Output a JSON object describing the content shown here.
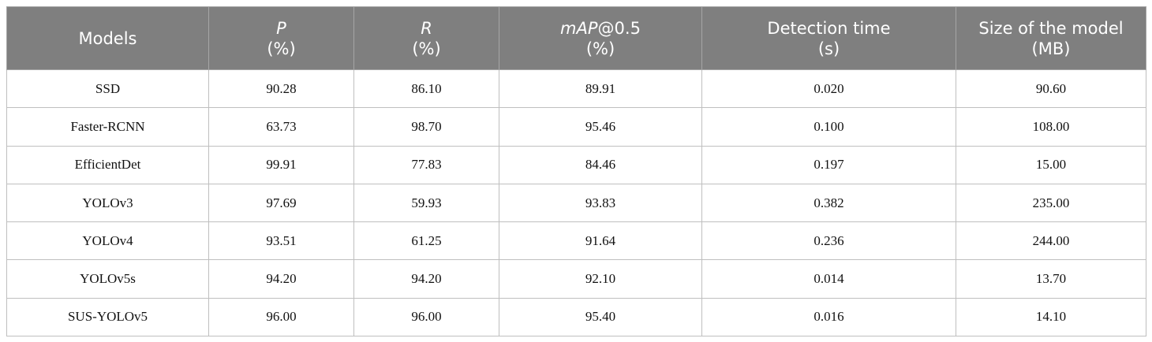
{
  "table": {
    "header": [
      {
        "name": [
          {
            "text": "Models"
          }
        ]
      },
      {
        "name": [
          {
            "text": "P",
            "italic": true
          }
        ],
        "unit": "(%)"
      },
      {
        "name": [
          {
            "text": "R",
            "italic": true
          }
        ],
        "unit": "(%)"
      },
      {
        "name": [
          {
            "text": "mAP",
            "italic": true
          },
          {
            "text": "@0.5"
          }
        ],
        "unit": "(%)"
      },
      {
        "name": [
          {
            "text": "Detection time"
          }
        ],
        "unit": "(s)"
      },
      {
        "name": [
          {
            "text": "Size of the model"
          }
        ],
        "unit": "(MB)"
      }
    ],
    "rows": [
      [
        "SSD",
        "90.28",
        "86.10",
        "89.91",
        "0.020",
        "90.60"
      ],
      [
        "Faster-RCNN",
        "63.73",
        "98.70",
        "95.46",
        "0.100",
        "108.00"
      ],
      [
        "EfficientDet",
        "99.91",
        "77.83",
        "84.46",
        "0.197",
        "15.00"
      ],
      [
        "YOLOv3",
        "97.69",
        "59.93",
        "93.83",
        "0.382",
        "235.00"
      ],
      [
        "YOLOv4",
        "93.51",
        "61.25",
        "91.64",
        "0.236",
        "244.00"
      ],
      [
        "YOLOv5s",
        "94.20",
        "94.20",
        "92.10",
        "0.014",
        "13.70"
      ],
      [
        "SUS-YOLOv5",
        "96.00",
        "96.00",
        "95.40",
        "0.016",
        "14.10"
      ]
    ]
  }
}
